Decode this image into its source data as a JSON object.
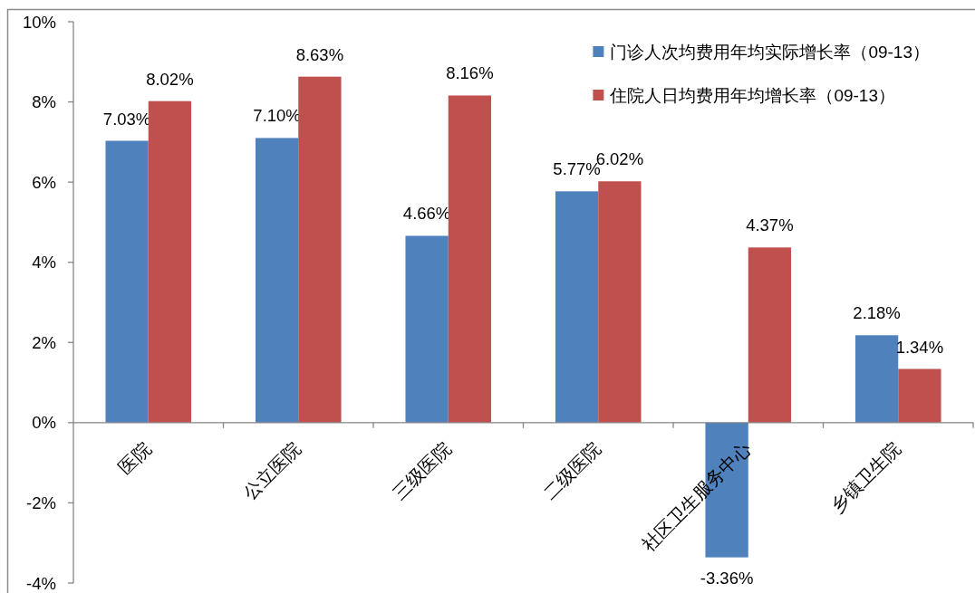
{
  "chart_data": {
    "type": "bar",
    "categories": [
      "医院",
      "公立医院",
      "三级医院",
      "二级医院",
      "社区卫生服务中心",
      "乡镇卫生院"
    ],
    "series": [
      {
        "name": "门诊人次均费用年均实际增长率（09-13）",
        "color": "#4f81bd",
        "values": [
          7.03,
          7.1,
          4.66,
          5.77,
          -3.36,
          2.18
        ],
        "value_labels": [
          "7.03%",
          "7.10%",
          "4.66%",
          "5.77%",
          "-3.36%",
          "2.18%"
        ]
      },
      {
        "name": "住院人日均费用年均增长率（09-13）",
        "color": "#c0504d",
        "values": [
          8.02,
          8.63,
          8.16,
          6.02,
          4.37,
          1.34
        ],
        "value_labels": [
          "8.02%",
          "8.63%",
          "8.16%",
          "6.02%",
          "4.37%",
          "1.34%"
        ]
      }
    ],
    "ylim": [
      -4,
      10
    ],
    "yticks": [
      {
        "value": -4,
        "label": "-4%"
      },
      {
        "value": -2,
        "label": "-2%"
      },
      {
        "value": 0,
        "label": "0%"
      },
      {
        "value": 2,
        "label": "2%"
      },
      {
        "value": 4,
        "label": "4%"
      },
      {
        "value": 6,
        "label": "6%"
      },
      {
        "value": 8,
        "label": "8%"
      },
      {
        "value": 10,
        "label": "10%"
      }
    ],
    "legend": "top right"
  }
}
